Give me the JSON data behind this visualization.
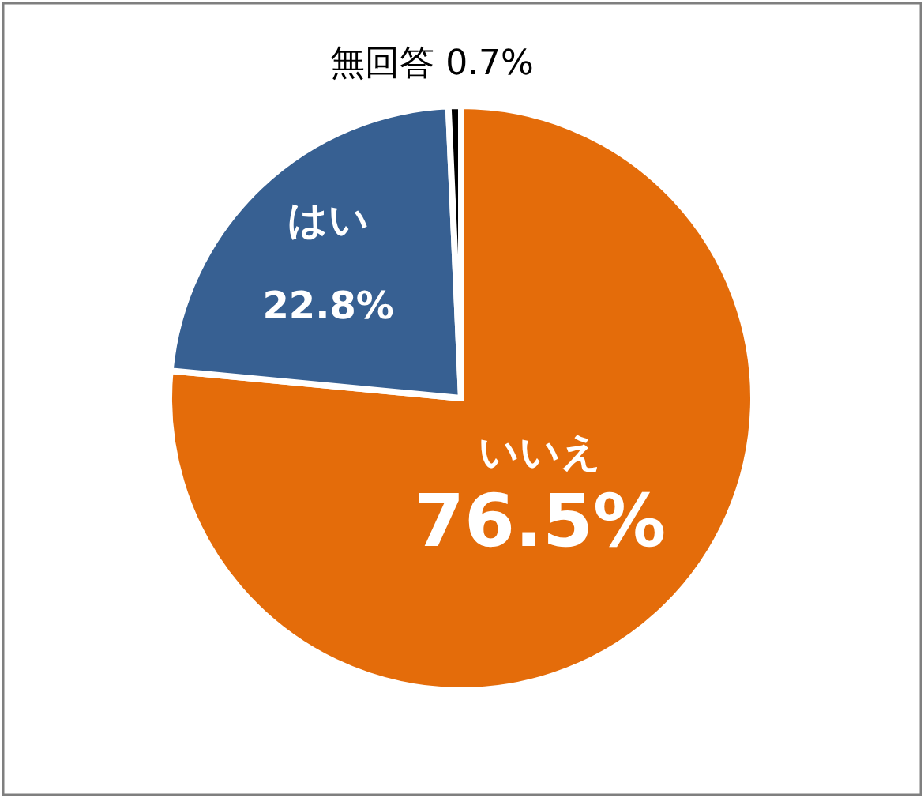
{
  "chart_data": {
    "type": "pie",
    "categories": [
      "いいえ",
      "はい",
      "無回答"
    ],
    "values": [
      76.5,
      22.8,
      0.7
    ],
    "colors": [
      "#e46c0a",
      "#376092",
      "#000000"
    ],
    "value_labels": [
      "76.5%",
      "22.8%",
      "0.7%"
    ]
  }
}
